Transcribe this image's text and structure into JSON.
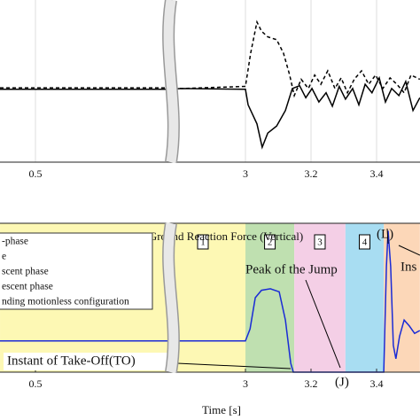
{
  "chart_data": [
    {
      "type": "line",
      "xlim": [
        0.392,
        3.532
      ],
      "ylim": [
        -1.04,
        1.25
      ],
      "xticks": [
        0.5,
        3,
        3.2,
        3.4
      ],
      "grid": true,
      "series": [
        {
          "color": "#000000",
          "dash": false,
          "x": [
            0.392,
            0.905,
            2.805,
            3.0,
            3.008,
            3.035,
            3.051,
            3.068,
            3.095,
            3.122,
            3.143,
            3.165,
            3.184,
            3.203,
            3.224,
            3.246,
            3.265,
            3.286,
            3.305,
            3.327,
            3.346,
            3.365,
            3.386,
            3.408,
            3.427,
            3.446,
            3.468,
            3.489,
            3.511,
            3.532
          ],
          "values": [
            -0.01,
            -0.01,
            0,
            -0.01,
            -0.23,
            -0.5,
            -0.83,
            -0.63,
            -0.53,
            -0.31,
            0,
            0.04,
            -0.13,
            0,
            -0.19,
            -0.06,
            -0.25,
            0.03,
            -0.15,
            0,
            -0.23,
            0.06,
            -0.06,
            0.15,
            -0.19,
            0,
            -0.1,
            0.1,
            -0.31,
            -0.13
          ]
        },
        {
          "color": "#000000",
          "dash": true,
          "x": [
            0.392,
            0.905,
            2.805,
            3.0,
            3.016,
            3.035,
            3.049,
            3.068,
            3.095,
            3.116,
            3.135,
            3.149,
            3.17,
            3.192,
            3.211,
            3.23,
            3.251,
            3.273,
            3.292,
            3.311,
            3.332,
            3.354,
            3.376,
            3.397,
            3.419,
            3.441,
            3.462,
            3.484,
            3.505,
            3.532
          ],
          "values": [
            0.01,
            0.01,
            0,
            0.03,
            0.5,
            0.94,
            0.81,
            0.73,
            0.69,
            0.5,
            0.19,
            -0.1,
            0.13,
            0,
            0.19,
            0.06,
            0.25,
            0,
            0.15,
            -0.06,
            0.13,
            0.25,
            0.06,
            0.19,
            0,
            0.15,
            0.06,
            -0.06,
            0.19,
            0.13
          ]
        }
      ]
    },
    {
      "type": "line",
      "title": "Ground Reaction Force (Vertical)",
      "xlabel": "Time [s]",
      "xlim": [
        0.392,
        3.532
      ],
      "ylim": [
        0,
        1
      ],
      "xticks": [
        0.5,
        3,
        3.2,
        3.4
      ],
      "phases": [
        {
          "label": "1",
          "start": 0.392,
          "end": 3.0,
          "color": "#fdf8b4"
        },
        {
          "label": "2",
          "start": 3.0,
          "end": 3.149,
          "color": "#bfe0b0"
        },
        {
          "label": "3",
          "start": 3.149,
          "end": 3.305,
          "color": "#f4cfe6"
        },
        {
          "label": "4",
          "start": 3.305,
          "end": 3.422,
          "color": "#a8ddf2"
        },
        {
          "start": 3.422,
          "end": 3.532,
          "color": "#fcd7b8"
        }
      ],
      "legend": [
        "-phase",
        "e",
        "scent phase",
        "escent phase",
        "nding motionless configuration"
      ],
      "annotations": [
        "Peak of the Jump",
        "Instant of Take-Off(TO)",
        "(J)",
        "(L)",
        "Ins"
      ],
      "series": [
        {
          "color": "#1a2bd6",
          "dash": false,
          "x": [
            0.392,
            0.905,
            2.805,
            3.0,
            3.014,
            3.03,
            3.049,
            3.076,
            3.103,
            3.122,
            3.138,
            3.146,
            3.422,
            3.43,
            3.435,
            3.443,
            3.451,
            3.459,
            3.47,
            3.484,
            3.5,
            3.516,
            3.532
          ],
          "values": [
            0.21,
            0.21,
            0.21,
            0.21,
            0.29,
            0.5,
            0.55,
            0.56,
            0.54,
            0.35,
            0.06,
            0,
            0,
            0.71,
            0.95,
            0.71,
            0.18,
            0.09,
            0.24,
            0.35,
            0.31,
            0.26,
            0.28
          ]
        }
      ]
    }
  ]
}
